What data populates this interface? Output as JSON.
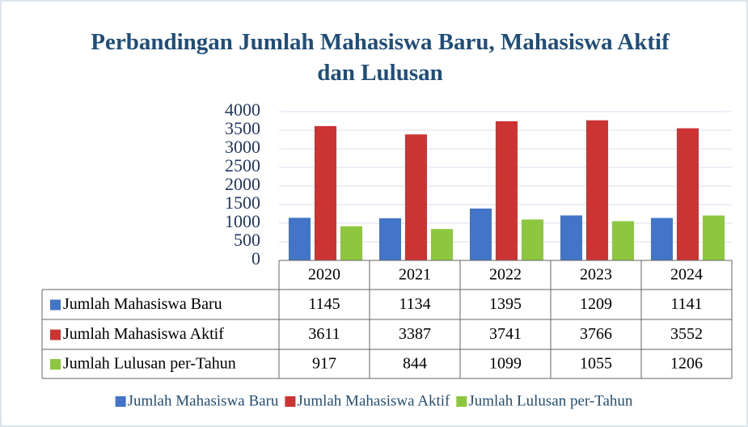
{
  "chart_data": {
    "type": "bar",
    "title": "Perbandingan Jumlah Mahasiswa Baru, Mahasiswa Aktif dan Lulusan",
    "categories": [
      "2020",
      "2021",
      "2022",
      "2023",
      "2024"
    ],
    "series": [
      {
        "name": "Jumlah Mahasiswa Baru",
        "color": "#4275c8",
        "values": [
          1145,
          1134,
          1395,
          1209,
          1141
        ]
      },
      {
        "name": "Jumlah Mahasiswa Aktif",
        "color": "#cc3333",
        "values": [
          3611,
          3387,
          3741,
          3766,
          3552
        ]
      },
      {
        "name": "Jumlah Lulusan per-Tahun",
        "color": "#8dc63f",
        "values": [
          917,
          844,
          1099,
          1055,
          1206
        ]
      }
    ],
    "ylim": [
      0,
      4000
    ],
    "yticks": [
      0,
      500,
      1000,
      1500,
      2000,
      2500,
      3000,
      3500,
      4000
    ],
    "grid": true,
    "legend": "bottom"
  }
}
